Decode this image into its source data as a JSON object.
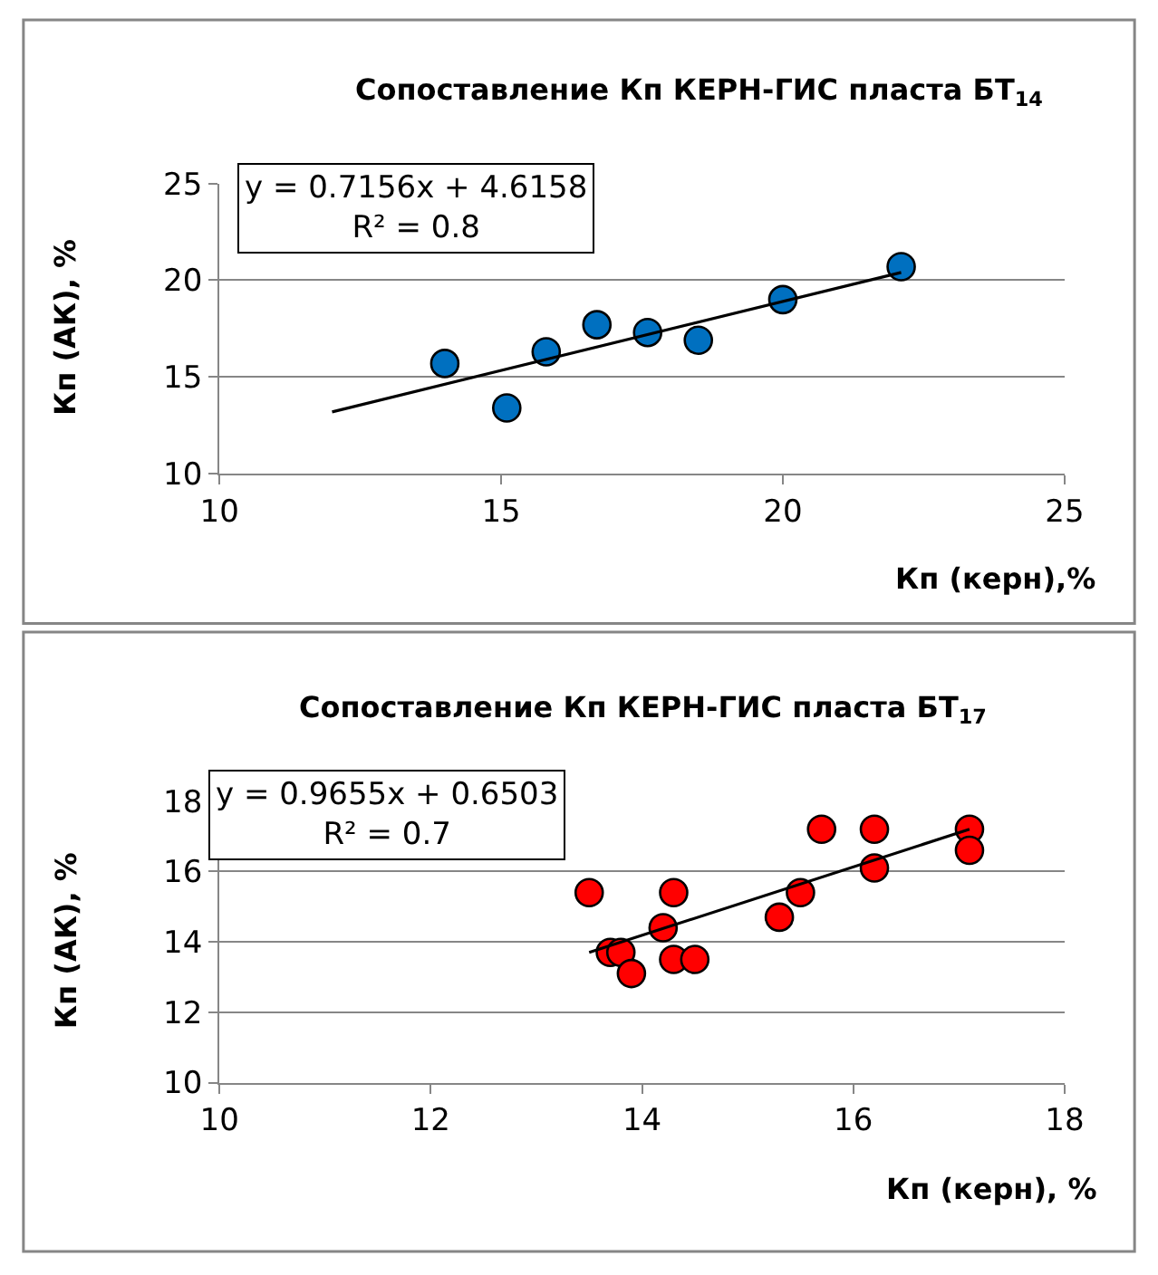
{
  "chart_data": [
    {
      "type": "scatter",
      "title": "Сопоставление Кп КЕРН-ГИС пласта БТ$_{14}$",
      "xlabel": "Кп (керн),%",
      "ylabel": "Кп (АК), %",
      "annotations": [
        "y = 0.7156x + 4.6158",
        "R² = 0.8"
      ],
      "x": [
        14,
        15.1,
        15.8,
        16.7,
        17.6,
        18.5,
        20,
        22.1
      ],
      "series": [
        {
          "color": "#0070c0",
          "values": [
            15.7,
            13.4,
            16.3,
            17.7,
            17.3,
            16.9,
            19,
            20.7
          ],
          "marker": "circle"
        },
        {
          "type": "line",
          "color": "#000000",
          "x": [
            12,
            22.1
          ],
          "values": [
            13.2,
            20.4
          ],
          "marker": "none"
        }
      ],
      "xlim": [
        10,
        25
      ],
      "xticks": [
        10,
        15,
        20,
        25
      ],
      "ylim": [
        10,
        25
      ],
      "yticks": [
        10,
        15,
        20,
        25
      ],
      "grid": "y"
    },
    {
      "type": "scatter",
      "title": "Сопоставление Кп КЕРН-ГИС пласта БТ$_{17}$",
      "xlabel": "Кп (керн), %",
      "ylabel": "Кп (АК), %",
      "annotations": [
        "y = 0.9655x + 0.6503",
        "R² = 0.7"
      ],
      "x": [
        13.5,
        13.7,
        13.8,
        13.9,
        14.2,
        14.3,
        14.3,
        14.5,
        15.3,
        15.5,
        15.7,
        16.2,
        16.2,
        17.1,
        17.1
      ],
      "series": [
        {
          "color": "#ff0000",
          "values": [
            15.4,
            13.7,
            13.7,
            13.1,
            14.4,
            15.4,
            13.5,
            13.5,
            14.7,
            15.4,
            17.2,
            17.2,
            16.1,
            17.2,
            16.6
          ],
          "marker": "circle"
        },
        {
          "type": "line",
          "color": "#000000",
          "x": [
            13.5,
            17.1
          ],
          "values": [
            13.7,
            17.2
          ],
          "marker": "none"
        }
      ],
      "xlim": [
        10,
        18
      ],
      "xticks": [
        10,
        12,
        14,
        16,
        18
      ],
      "ylim": [
        10,
        18
      ],
      "yticks": [
        10,
        12,
        14,
        16,
        18
      ],
      "grid": "y"
    }
  ]
}
